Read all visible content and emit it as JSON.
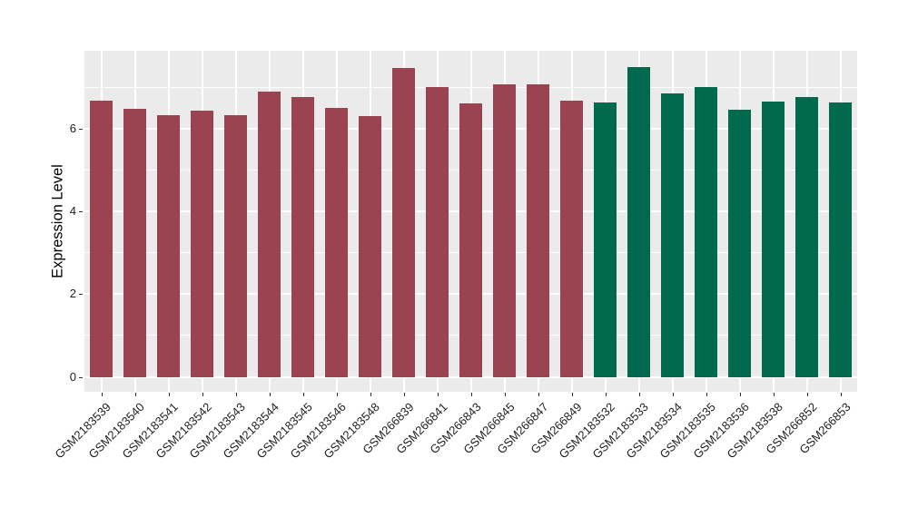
{
  "chart_data": {
    "type": "bar",
    "title": "",
    "xlabel": "",
    "ylabel": "Expression Level",
    "categories": [
      "GSM2183539",
      "GSM2183540",
      "GSM2183541",
      "GSM2183542",
      "GSM2183543",
      "GSM2183544",
      "GSM2183545",
      "GSM2183546",
      "GSM2183548",
      "GSM266839",
      "GSM266841",
      "GSM266843",
      "GSM266845",
      "GSM266847",
      "GSM266849",
      "GSM2183532",
      "GSM2183533",
      "GSM2183534",
      "GSM2183535",
      "GSM2183536",
      "GSM2183538",
      "GSM266852",
      "GSM266853"
    ],
    "values": [
      6.68,
      6.48,
      6.32,
      6.43,
      6.33,
      6.9,
      6.77,
      6.5,
      6.3,
      7.46,
      7.0,
      6.6,
      7.06,
      7.06,
      6.67,
      6.64,
      7.49,
      6.86,
      7.01,
      6.46,
      6.65,
      6.76,
      6.62
    ],
    "bar_group": [
      "group1",
      "group1",
      "group1",
      "group1",
      "group1",
      "group1",
      "group1",
      "group1",
      "group1",
      "group1",
      "group1",
      "group1",
      "group1",
      "group1",
      "group1",
      "group2",
      "group2",
      "group2",
      "group2",
      "group2",
      "group2",
      "group2",
      "group2"
    ],
    "group_colors": {
      "group1": "#9B4351",
      "group2": "#016A4E"
    },
    "yticks": [
      0,
      2,
      4,
      6
    ],
    "yticks_minor": [
      1,
      3,
      5,
      7
    ],
    "ylim": [
      -0.36,
      7.88
    ],
    "grid": "on",
    "legend": "none",
    "panel_bg": "#EBEBEB",
    "grid_color": "#FFFFFF",
    "axis_text_color": "#1f1f1f"
  }
}
